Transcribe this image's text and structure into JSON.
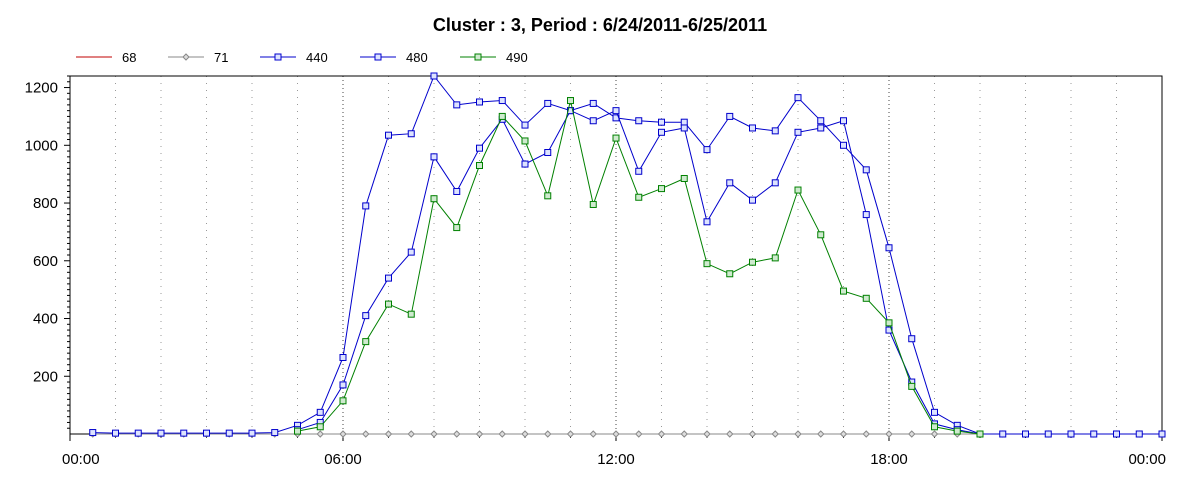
{
  "chart_data": {
    "type": "line",
    "title": "Cluster : 3, Period : 6/24/2011-6/25/2011",
    "xlabel": "",
    "ylabel": "",
    "x_tick_labels": [
      "00:00",
      "06:00",
      "12:00",
      "18:00",
      "00:00"
    ],
    "y_tick_labels": [
      "200",
      "400",
      "600",
      "800",
      "1000",
      "1200"
    ],
    "ylim": [
      0,
      1240
    ],
    "xlim_hours": [
      0,
      24
    ],
    "legend_placement": "top-left",
    "grid": "vertical dotted",
    "series": [
      {
        "name": "68",
        "color": "#c00000",
        "marker": "none",
        "x": [
          0.5,
          1,
          1.5,
          2,
          2.5,
          3,
          3.5,
          4,
          4.5,
          5,
          5.5,
          6,
          6.5,
          7,
          7.5,
          8,
          8.5,
          9,
          9.5,
          10,
          10.5,
          11,
          11.5,
          12,
          12.5,
          13,
          13.5,
          14,
          14.5,
          15,
          15.5,
          16,
          16.5,
          17,
          17.5,
          18,
          18.5,
          19,
          19.5,
          20,
          20.5,
          21,
          21.5,
          22,
          22.5,
          23,
          23.5,
          24
        ],
        "values": [
          0,
          0,
          0,
          0,
          0,
          0,
          0,
          0,
          0,
          0,
          0,
          0,
          0,
          0,
          0,
          0,
          0,
          0,
          0,
          0,
          0,
          0,
          0,
          0,
          0,
          0,
          0,
          0,
          0,
          0,
          0,
          0,
          0,
          0,
          0,
          0,
          0,
          0,
          0,
          0,
          0,
          0,
          0,
          0,
          0,
          0,
          0,
          0
        ]
      },
      {
        "name": "71",
        "color": "#888888",
        "marker": "diamond",
        "x": [
          0.5,
          1,
          1.5,
          2,
          2.5,
          3,
          3.5,
          4,
          4.5,
          5,
          5.5,
          6,
          6.5,
          7,
          7.5,
          8,
          8.5,
          9,
          9.5,
          10,
          10.5,
          11,
          11.5,
          12,
          12.5,
          13,
          13.5,
          14,
          14.5,
          15,
          15.5,
          16,
          16.5,
          17,
          17.5,
          18,
          18.5,
          19,
          19.5,
          20,
          20.5,
          21,
          21.5,
          22,
          22.5,
          23,
          23.5,
          24
        ],
        "values": [
          0,
          0,
          0,
          0,
          0,
          0,
          0,
          0,
          0,
          0,
          0,
          0,
          0,
          0,
          0,
          0,
          0,
          0,
          0,
          0,
          0,
          0,
          0,
          0,
          0,
          0,
          0,
          0,
          0,
          0,
          0,
          0,
          0,
          0,
          0,
          0,
          0,
          0,
          0,
          0,
          0,
          0,
          0,
          0,
          0,
          0,
          0,
          0
        ]
      },
      {
        "name": "440",
        "color": "#0000cc",
        "marker": "square",
        "x": [
          0.5,
          1,
          1.5,
          2,
          2.5,
          3,
          3.5,
          4,
          4.5,
          5,
          5.5,
          6,
          6.5,
          7,
          7.5,
          8,
          8.5,
          9,
          9.5,
          10,
          10.5,
          11,
          11.5,
          12,
          12.5,
          13,
          13.5,
          14,
          14.5,
          15,
          15.5,
          16,
          16.5,
          17,
          17.5,
          18,
          18.5,
          19,
          19.5,
          20,
          20.5,
          21,
          21.5,
          22,
          22.5,
          23,
          23.5,
          24
        ],
        "values": [
          5,
          3,
          3,
          3,
          3,
          3,
          3,
          3,
          5,
          30,
          75,
          265,
          790,
          1035,
          1040,
          1240,
          1140,
          1150,
          1155,
          1070,
          1145,
          1120,
          1145,
          1095,
          1085,
          1080,
          1080,
          985,
          1100,
          1060,
          1050,
          1165,
          1085,
          1000,
          915,
          645,
          330,
          75,
          30,
          0,
          0,
          0,
          0,
          0,
          0,
          0,
          0,
          0
        ]
      },
      {
        "name": "480",
        "color": "#0000cc",
        "marker": "square",
        "x": [
          5,
          5.5,
          6,
          6.5,
          7,
          7.5,
          8,
          8.5,
          9,
          9.5,
          10,
          10.5,
          11,
          11.5,
          12,
          12.5,
          13,
          13.5,
          14,
          14.5,
          15,
          15.5,
          16,
          16.5,
          17,
          17.5,
          18,
          18.5,
          19,
          19.5,
          20
        ],
        "values": [
          15,
          40,
          170,
          410,
          540,
          630,
          960,
          840,
          990,
          1090,
          935,
          975,
          1120,
          1085,
          1120,
          910,
          1045,
          1060,
          735,
          870,
          810,
          870,
          1045,
          1060,
          1085,
          760,
          360,
          180,
          35,
          15,
          0
        ]
      },
      {
        "name": "490",
        "color": "#008000",
        "marker": "square",
        "x": [
          5,
          5.5,
          6,
          6.5,
          7,
          7.5,
          8,
          8.5,
          9,
          9.5,
          10,
          10.5,
          11,
          11.5,
          12,
          12.5,
          13,
          13.5,
          14,
          14.5,
          15,
          15.5,
          16,
          16.5,
          17,
          17.5,
          18,
          18.5,
          19,
          19.5,
          20
        ],
        "values": [
          10,
          25,
          115,
          320,
          450,
          415,
          815,
          715,
          930,
          1100,
          1015,
          825,
          1155,
          795,
          1025,
          820,
          850,
          885,
          590,
          555,
          595,
          610,
          845,
          690,
          495,
          470,
          385,
          165,
          25,
          10,
          0
        ]
      }
    ]
  }
}
